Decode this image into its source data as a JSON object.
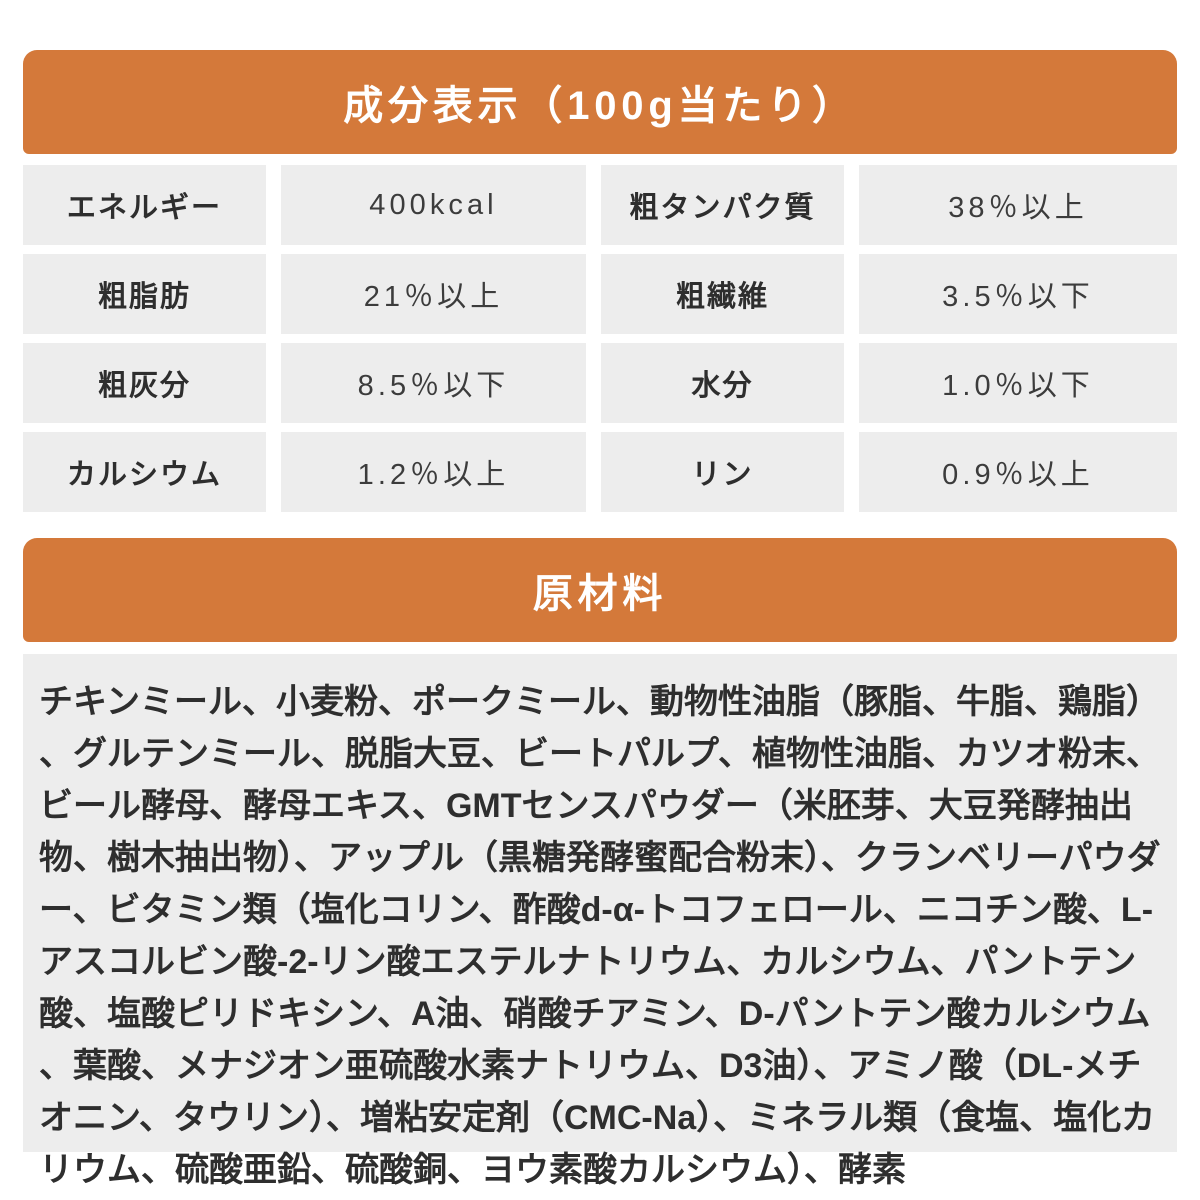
{
  "colors": {
    "accent_orange": "#d4793a",
    "cell_gray": "#ededed",
    "header_text": "#ffffff",
    "label_text": "#2e2e2e",
    "value_text": "#3c3c3c"
  },
  "nutrition": {
    "title": "成分表示（100g当たり）",
    "items": [
      {
        "key": "energy",
        "label": "エネルギー",
        "value": "400kcal"
      },
      {
        "key": "crude-protein",
        "label": "粗タンパク質",
        "value": "38％以上"
      },
      {
        "key": "crude-fat",
        "label": "粗脂肪",
        "value": "21％以上"
      },
      {
        "key": "crude-fiber",
        "label": "粗繊維",
        "value": "3.5％以下"
      },
      {
        "key": "crude-ash",
        "label": "粗灰分",
        "value": "8.5％以下"
      },
      {
        "key": "moisture",
        "label": "水分",
        "value": "1.0％以下"
      },
      {
        "key": "calcium",
        "label": "カルシウム",
        "value": "1.2％以上"
      },
      {
        "key": "phosphorus",
        "label": "リン",
        "value": "0.9％以上"
      }
    ]
  },
  "ingredients": {
    "title": "原材料",
    "text": "チキンミール、小麦粉、ポークミール、動物性油脂（豚脂、牛脂、鶏脂）、グルテンミール、脱脂大豆、ビートパルプ、植物性油脂、カツオ粉末、ビール酵母、酵母エキス、GMTセンスパウダー（米胚芽、大豆発酵抽出物、樹木抽出物）、アップル（黒糖発酵蜜配合粉末）、クランベリーパウダー、ビタミン類（塩化コリン、酢酸d-α-トコフェロール、ニコチン酸、L-アスコルビン酸-2-リン酸エステルナトリウム、カルシウム、パントテン酸、塩酸ピリドキシン、A油、硝酸チアミン、D-パントテン酸カルシウム、葉酸、メナジオン亜硫酸水素ナトリウム、D3油）、アミノ酸（DL-メチオニン、タウリン）、増粘安定剤（CMC-Na）、ミネラル類（食塩、塩化カリウム、硫酸亜鉛、硫酸銅、ヨウ素酸カルシウム）、酵素"
  }
}
